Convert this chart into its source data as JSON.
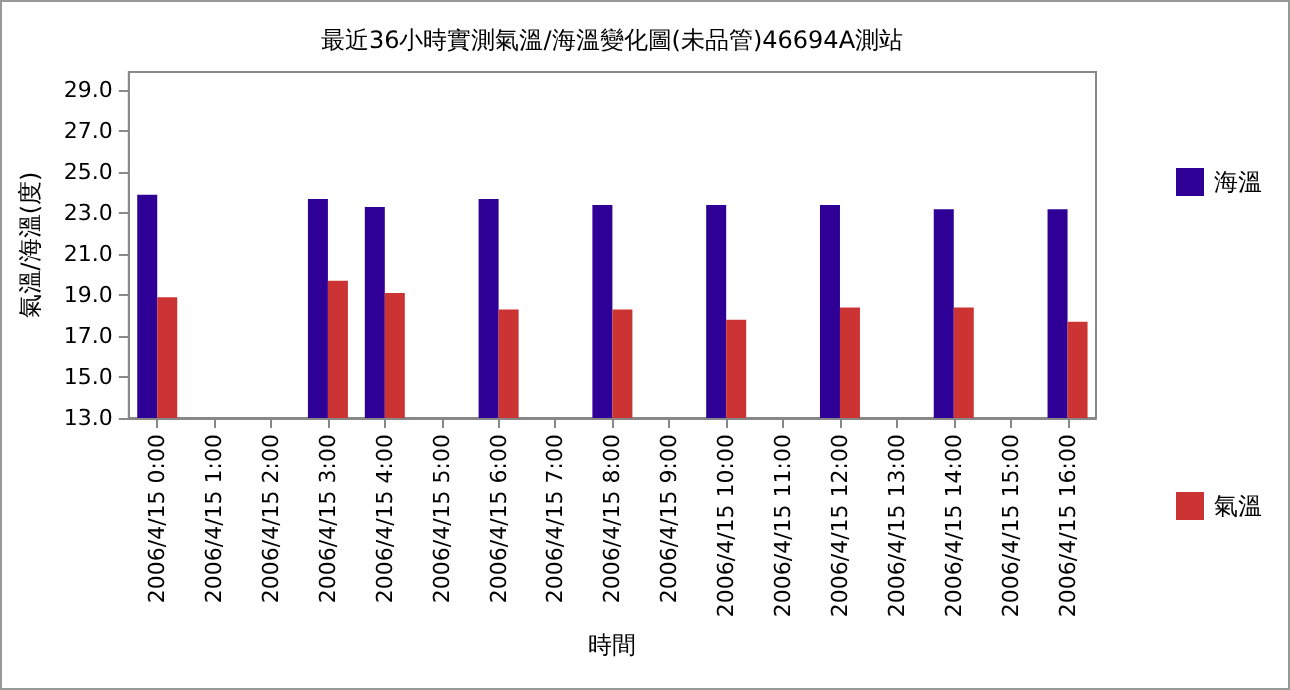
{
  "chart_data": {
    "type": "bar",
    "title": "最近36小時實測氣溫/海溫變化圖(未品管)46694A測站",
    "xlabel": "時間",
    "ylabel": "氣溫/海溫(度)",
    "categories": [
      "2006/4/15 0:00",
      "2006/4/15 1:00",
      "2006/4/15 2:00",
      "2006/4/15 3:00",
      "2006/4/15 4:00",
      "2006/4/15 5:00",
      "2006/4/15 6:00",
      "2006/4/15 7:00",
      "2006/4/15 8:00",
      "2006/4/15 9:00",
      "2006/4/15 10:00",
      "2006/4/15 11:00",
      "2006/4/15 12:00",
      "2006/4/15 13:00",
      "2006/4/15 14:00",
      "2006/4/15 15:00",
      "2006/4/15 16:00"
    ],
    "series": [
      {
        "name": "海溫",
        "color": "#2e0096",
        "values": [
          23.9,
          null,
          null,
          23.7,
          23.3,
          null,
          23.7,
          null,
          23.4,
          null,
          23.4,
          null,
          23.4,
          null,
          23.2,
          null,
          23.2
        ]
      },
      {
        "name": "氣溫",
        "color": "#cc3333",
        "values": [
          18.9,
          null,
          null,
          19.7,
          19.1,
          null,
          18.3,
          null,
          18.3,
          null,
          17.8,
          null,
          18.4,
          null,
          18.4,
          null,
          17.7
        ]
      }
    ],
    "ylim": [
      13,
      29.9
    ],
    "yticks": [
      {
        "value": 13,
        "label": "13.0"
      },
      {
        "value": 15,
        "label": "15.0"
      },
      {
        "value": 17,
        "label": "17.0"
      },
      {
        "value": 19,
        "label": "19.0"
      },
      {
        "value": 21,
        "label": "21.0"
      },
      {
        "value": 23,
        "label": "23.0"
      },
      {
        "value": 25,
        "label": "25.0"
      },
      {
        "value": 27,
        "label": "27.0"
      },
      {
        "value": 29,
        "label": "29.0"
      }
    ],
    "grid": false,
    "legend": "right"
  }
}
